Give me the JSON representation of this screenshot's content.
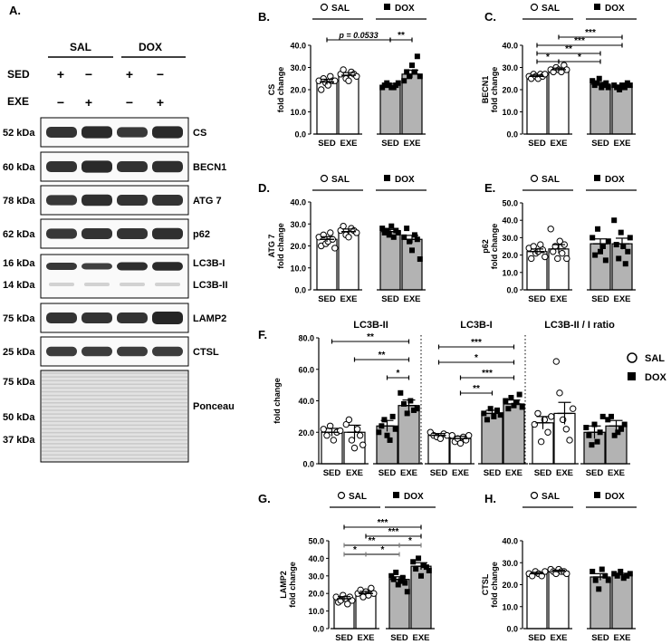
{
  "figure_title": "",
  "western_blot": {
    "panel_label": "A.",
    "groups": [
      "SAL",
      "DOX"
    ],
    "condition_labels": [
      "SED",
      "EXE"
    ],
    "sed_marks": [
      "+",
      "−",
      "+",
      "−"
    ],
    "exe_marks": [
      "−",
      "+",
      "−",
      "+"
    ],
    "bands": [
      {
        "kda": "52 kDa",
        "protein": "CS",
        "lanes": [
          0.85,
          0.95,
          0.8,
          0.95
        ]
      },
      {
        "kda": "60 kDa",
        "protein": "BECN1",
        "lanes": [
          0.85,
          0.95,
          0.85,
          0.9
        ]
      },
      {
        "kda": "78 kDa",
        "protein": "ATG 7",
        "lanes": [
          0.8,
          0.9,
          0.85,
          0.85
        ]
      },
      {
        "kda": "62 kDa",
        "protein": "p62",
        "lanes": [
          0.8,
          0.85,
          0.85,
          0.9
        ]
      },
      {
        "kda": "16 kDa",
        "kda2": "14 kDa",
        "protein": "LC3B-I",
        "protein2": "LC3B-II",
        "lanes": [
          0.8,
          0.7,
          0.9,
          0.95
        ]
      },
      {
        "kda": "75 kDa",
        "protein": "LAMP2",
        "lanes": [
          0.85,
          0.85,
          0.85,
          1.0
        ]
      },
      {
        "kda": "25 kDa",
        "protein": "CTSL",
        "lanes": [
          0.75,
          0.75,
          0.75,
          0.75
        ]
      }
    ],
    "ponceau": {
      "protein": "Ponceau",
      "kda": [
        "75 kDa",
        "50 kDa",
        "37 kDa"
      ]
    }
  },
  "legend": {
    "sal": "SAL",
    "dox": "DOX"
  },
  "colors": {
    "sal_bar": "#ffffff",
    "dox_bar": "#b3b3b3",
    "ink": "#000000",
    "sig": "#808080",
    "band": "#1a1a1a"
  },
  "chart_data": [
    {
      "panel": "B.",
      "type": "bar",
      "ylabel": "CS",
      "ylabel2": "fold change",
      "ylim": [
        0,
        40
      ],
      "yticks": [
        "0.0",
        "10.0",
        "20.0",
        "30.0",
        "40.0"
      ],
      "categories": [
        "SED",
        "EXE",
        "SED",
        "EXE"
      ],
      "group_names": [
        "SAL",
        "DOX"
      ],
      "means": [
        23.5,
        26.5,
        22.0,
        27.0
      ],
      "errors": [
        1.2,
        1.2,
        0.8,
        1.8
      ],
      "points": [
        [
          24,
          20,
          25,
          23,
          22,
          26,
          24,
          24
        ],
        [
          27,
          29,
          25,
          24,
          28,
          27,
          26
        ],
        [
          21,
          22,
          23,
          22,
          21,
          21,
          22,
          23
        ],
        [
          24,
          28,
          26,
          31,
          28,
          35,
          26
        ]
      ],
      "annotations": [
        {
          "from": 0,
          "to": 2,
          "level": 0,
          "label": "p = 0.0533",
          "italic_p": true
        },
        {
          "from": 2,
          "to": 3,
          "level": 0,
          "label": "**"
        }
      ]
    },
    {
      "panel": "C.",
      "type": "bar",
      "ylabel": "BECN1",
      "ylabel2": "fold change",
      "ylim": [
        0,
        40
      ],
      "yticks": [
        "0.0",
        "10.0",
        "20.0",
        "30.0",
        "40.0"
      ],
      "categories": [
        "SED",
        "EXE",
        "SED",
        "EXE"
      ],
      "group_names": [
        "SAL",
        "DOX"
      ],
      "means": [
        26.0,
        29.0,
        22.5,
        21.5
      ],
      "errors": [
        0.6,
        0.7,
        0.8,
        0.6
      ],
      "points": [
        [
          26,
          25,
          27,
          26,
          25,
          27,
          26,
          27
        ],
        [
          29,
          28,
          30,
          29,
          28,
          31,
          29
        ],
        [
          24,
          22,
          23,
          25,
          21,
          22,
          23,
          21
        ],
        [
          22,
          21,
          20,
          22,
          21,
          23,
          22
        ]
      ],
      "annotations": [
        {
          "from": 0,
          "to": 1,
          "level": 0,
          "label": "*"
        },
        {
          "from": 1,
          "to": 2,
          "level": 0,
          "label": "*"
        },
        {
          "from": 0,
          "to": 2,
          "level": 1,
          "label": "**"
        },
        {
          "from": 0,
          "to": 3,
          "level": 2,
          "label": "***"
        },
        {
          "from": 1,
          "to": 3,
          "level": 3,
          "label": "***"
        }
      ]
    },
    {
      "panel": "D.",
      "type": "bar",
      "ylabel": "ATG 7",
      "ylabel2": "fold change",
      "ylim": [
        0,
        40
      ],
      "yticks": [
        "0.0",
        "10.0",
        "20.0",
        "30.0",
        "40.0"
      ],
      "categories": [
        "SED",
        "EXE",
        "SED",
        "EXE"
      ],
      "group_names": [
        "SAL",
        "DOX"
      ],
      "means": [
        23.0,
        26.5,
        26.5,
        23.0
      ],
      "errors": [
        1.2,
        1.2,
        1.0,
        1.8
      ],
      "points": [
        [
          24,
          20,
          25,
          21,
          22,
          26,
          23,
          19
        ],
        [
          27,
          29,
          25,
          24,
          28,
          27,
          26
        ],
        [
          28,
          26,
          27,
          25,
          29,
          24,
          27,
          26
        ],
        [
          24,
          28,
          22,
          18,
          25,
          23,
          14
        ]
      ],
      "annotations": []
    },
    {
      "panel": "E.",
      "type": "bar",
      "ylabel": "p62",
      "ylabel2": "fold change",
      "ylim": [
        0,
        50
      ],
      "yticks": [
        "0.0",
        "10.0",
        "20.0",
        "30.0",
        "40.0",
        "50.0"
      ],
      "categories": [
        "SED",
        "EXE",
        "SED",
        "EXE"
      ],
      "group_names": [
        "SAL",
        "DOX"
      ],
      "means": [
        22.0,
        23.5,
        26.5,
        26.5
      ],
      "errors": [
        1.5,
        2.5,
        2.8,
        3.2
      ],
      "points": [
        [
          24,
          18,
          25,
          21,
          22,
          26,
          23,
          19
        ],
        [
          35,
          22,
          25,
          18,
          28,
          21,
          26,
          18
        ],
        [
          30,
          20,
          35,
          22,
          25,
          17,
          28
        ],
        [
          40,
          26,
          18,
          33,
          25,
          15,
          22,
          30
        ]
      ],
      "annotations": []
    },
    {
      "panel": "F.",
      "type": "bar",
      "title": "LC3B-II",
      "ylabel": "",
      "ylabel2": "fold change",
      "ylim": [
        0,
        80
      ],
      "yticks": [
        "0.0",
        "20.0",
        "40.0",
        "60.0",
        "80.0"
      ],
      "categories": [
        "SED",
        "EXE",
        "SED",
        "EXE"
      ],
      "means": [
        20.0,
        20.0,
        24.0,
        37.0
      ],
      "errors": [
        2.5,
        4.5,
        3.5,
        3.5
      ],
      "points": [
        [
          22,
          18,
          24,
          15,
          20,
          21
        ],
        [
          25,
          28,
          15,
          10,
          22,
          18,
          12
        ],
        [
          20,
          24,
          28,
          18,
          15,
          30,
          22
        ],
        [
          45,
          38,
          32,
          40,
          34,
          35
        ]
      ],
      "annotations": [
        {
          "from": 2,
          "to": 3,
          "level": 0,
          "label": "*"
        },
        {
          "from": 1,
          "to": 3,
          "level": 1,
          "label": "**"
        },
        {
          "from": 0,
          "to": 3,
          "level": 2,
          "label": "**"
        }
      ]
    },
    {
      "panel": "",
      "type": "bar",
      "title": "LC3B-I",
      "ylabel": "",
      "ylabel2": "",
      "ylim": [
        0,
        80
      ],
      "yticks": [],
      "categories": [
        "SED",
        "EXE",
        "SED",
        "EXE"
      ],
      "means": [
        18.0,
        16.0,
        32.0,
        38.0
      ],
      "errors": [
        1.2,
        1.5,
        2.0,
        2.5
      ],
      "points": [
        [
          20,
          18,
          17,
          16,
          19,
          18
        ],
        [
          18,
          14,
          16,
          13,
          17,
          15,
          18
        ],
        [
          32,
          28,
          35,
          30,
          34,
          31
        ],
        [
          40,
          35,
          42,
          37,
          39,
          44,
          36
        ]
      ],
      "annotations": [
        {
          "from": 1,
          "to": 2,
          "level": 0,
          "label": "**"
        },
        {
          "from": 1,
          "to": 3,
          "level": 1,
          "label": "***"
        },
        {
          "from": 0,
          "to": 3,
          "level": 2,
          "label": "*"
        },
        {
          "from": 0,
          "to": 3,
          "level": 3,
          "label": "***"
        }
      ]
    },
    {
      "panel": "",
      "type": "bar",
      "title": "LC3B-II / I ratio",
      "ylabel": "",
      "ylabel2": "",
      "ylim": [
        0,
        80
      ],
      "yticks": [],
      "categories": [
        "SED",
        "EXE",
        "SED",
        "EXE"
      ],
      "means": [
        26.0,
        32.0,
        20.0,
        24.0
      ],
      "errors": [
        4.0,
        7.0,
        4.0,
        3.5
      ],
      "points": [
        [
          25,
          32,
          14,
          28,
          20,
          30
        ],
        [
          65,
          45,
          28,
          22,
          15,
          35
        ],
        [
          23,
          18,
          12,
          25,
          14,
          20,
          30
        ],
        [
          28,
          30,
          18,
          20,
          22,
          25
        ]
      ],
      "annotations": []
    },
    {
      "panel": "G.",
      "type": "bar",
      "ylabel": "LAMP2",
      "ylabel2": "fold change",
      "ylim": [
        0,
        50
      ],
      "yticks": [
        "0.0",
        "10.0",
        "20.0",
        "30.0",
        "40.0",
        "50.0"
      ],
      "categories": [
        "SED",
        "EXE",
        "SED",
        "EXE"
      ],
      "group_names": [
        "SAL",
        "DOX"
      ],
      "means": [
        17.0,
        20.0,
        28.0,
        35.5
      ],
      "errors": [
        1.2,
        1.2,
        1.5,
        2.0
      ],
      "points": [
        [
          18,
          15,
          16,
          19,
          17,
          14,
          18,
          16
        ],
        [
          20,
          22,
          18,
          21,
          19,
          23,
          20
        ],
        [
          30,
          28,
          32,
          25,
          27,
          29,
          26,
          21
        ],
        [
          38,
          34,
          40,
          30,
          36,
          35,
          33
        ]
      ],
      "annotations": [
        {
          "from": 0,
          "to": 1,
          "level": 0,
          "label": "*",
          "gray": true
        },
        {
          "from": 1,
          "to": 2,
          "level": 0,
          "label": "*",
          "gray": true
        },
        {
          "from": 2,
          "to": 3,
          "level": 1,
          "label": "*",
          "gray": true
        },
        {
          "from": 0,
          "to": 2,
          "level": 1,
          "label": "**",
          "gray": true
        },
        {
          "from": 1,
          "to": 3,
          "level": 2,
          "label": "***"
        },
        {
          "from": 0,
          "to": 3,
          "level": 3,
          "label": "***"
        }
      ]
    },
    {
      "panel": "H.",
      "type": "bar",
      "ylabel": "CTSL",
      "ylabel2": "fold change",
      "ylim": [
        0,
        40
      ],
      "yticks": [
        "0.0",
        "10.0",
        "20.0",
        "30.0",
        "40.0"
      ],
      "categories": [
        "SED",
        "EXE",
        "SED",
        "EXE"
      ],
      "group_names": [
        "SAL",
        "DOX"
      ],
      "means": [
        25.0,
        26.0,
        23.5,
        24.5
      ],
      "errors": [
        0.6,
        0.6,
        1.5,
        0.7
      ],
      "points": [
        [
          25,
          24,
          26,
          25,
          24,
          26
        ],
        [
          27,
          26,
          25,
          27,
          26,
          26,
          25
        ],
        [
          26,
          22,
          18,
          27,
          24,
          22
        ],
        [
          25,
          24,
          26,
          23,
          24,
          25
        ]
      ],
      "annotations": []
    }
  ]
}
